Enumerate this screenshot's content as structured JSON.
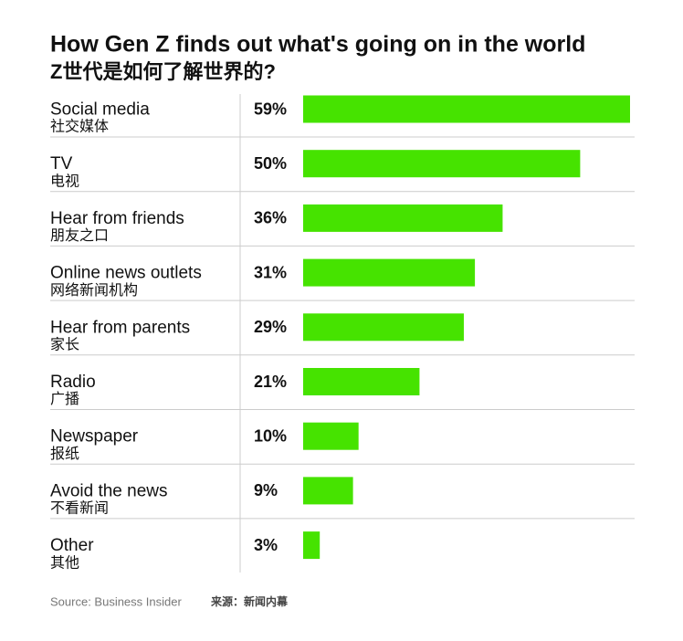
{
  "chart_data": {
    "type": "bar",
    "orientation": "horizontal",
    "title": "How Gen Z finds out what's going on in the world",
    "subtitle": "Z世代是如何了解世界的?",
    "categories": [
      "Social media",
      "TV",
      "Hear from friends",
      "Online news outlets",
      "Hear from parents",
      "Radio",
      "Newspaper",
      "Avoid the news",
      "Other"
    ],
    "categories_zh": [
      "社交媒体",
      "电视",
      "朋友之口",
      "网络新闻机构",
      "家长",
      "广播",
      "报纸",
      "不看新闻",
      "其他"
    ],
    "values": [
      59,
      50,
      36,
      31,
      29,
      21,
      10,
      9,
      3
    ],
    "value_labels": [
      "59%",
      "50%",
      "36%",
      "31%",
      "29%",
      "21%",
      "10%",
      "9%",
      "3%"
    ],
    "color": "#46e300",
    "source": "Source: Business Insider",
    "source_zh": "来源：新闻内幕"
  }
}
